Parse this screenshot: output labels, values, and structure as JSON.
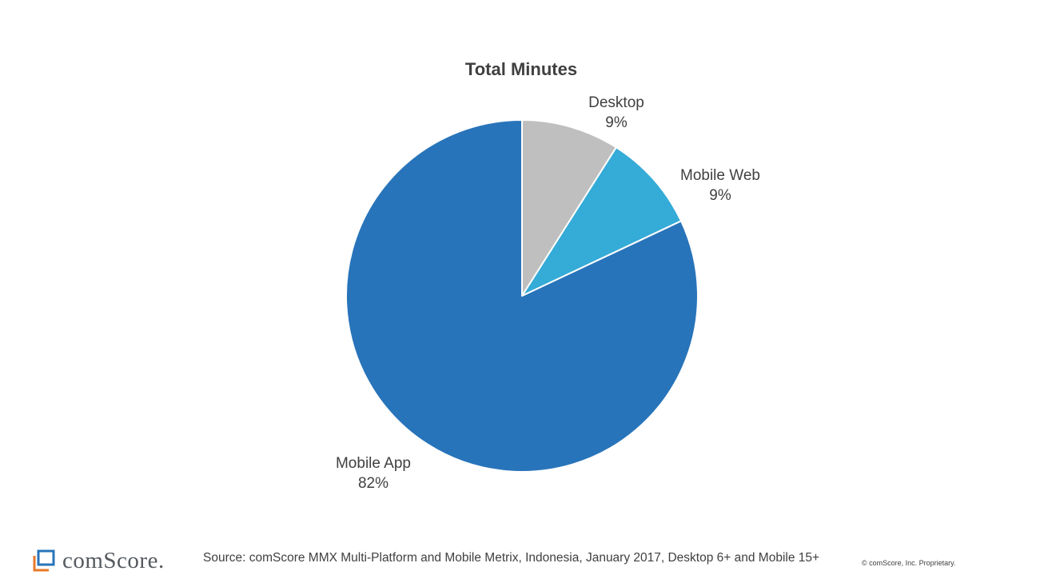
{
  "chart_data": {
    "type": "pie",
    "title": "Total Minutes",
    "slices": [
      {
        "label": "Desktop",
        "value": 9,
        "value_label": "9%",
        "color": "#BFBFBF"
      },
      {
        "label": "Mobile Web",
        "value": 9,
        "value_label": "9%",
        "color": "#35ABD7"
      },
      {
        "label": "Mobile App",
        "value": 82,
        "value_label": "82%",
        "color": "#2874BA"
      }
    ],
    "start_angle": "12 o'clock",
    "direction": "clockwise",
    "legend": "none",
    "data_labels": "outside"
  },
  "footer": {
    "logo_text": "comScore.",
    "logo_colors": {
      "front": "#2874BA",
      "back": "#E8792A"
    },
    "source": "Source: comScore MMX Multi-Platform  and Mobile Metrix, Indonesia,  January  2017, Desktop 6+ and Mobile 15+",
    "copyright": "© comScore, Inc. Proprietary."
  }
}
